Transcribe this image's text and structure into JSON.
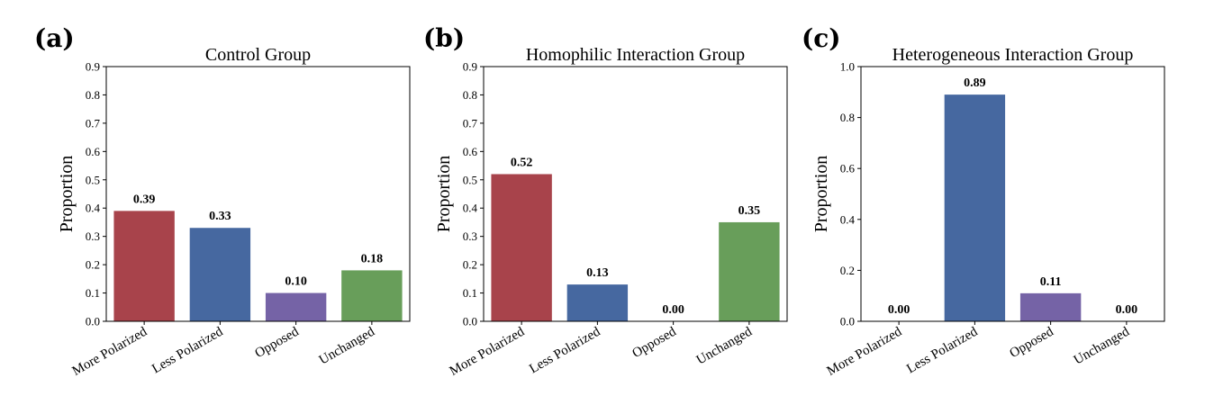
{
  "colors": {
    "more_polarized": "#a8434b",
    "less_polarized": "#4668a0",
    "opposed": "#7563a6",
    "unchanged": "#689e5a"
  },
  "chart_data": [
    {
      "type": "bar",
      "panel_label": "(a)",
      "title": "Control Group",
      "ylabel": "Proportion",
      "categories": [
        "More Polarized",
        "Less Polarized",
        "Opposed",
        "Unchanged"
      ],
      "values": [
        0.39,
        0.33,
        0.1,
        0.18
      ],
      "value_labels": [
        "0.39",
        "0.33",
        "0.10",
        "0.18"
      ],
      "ylim": [
        0,
        0.9
      ],
      "yticks": [
        "0.0",
        "0.1",
        "0.2",
        "0.3",
        "0.4",
        "0.5",
        "0.6",
        "0.7",
        "0.8",
        "0.9"
      ],
      "ytick_values": [
        0,
        0.1,
        0.2,
        0.3,
        0.4,
        0.5,
        0.6,
        0.7,
        0.8,
        0.9
      ],
      "grid": false
    },
    {
      "type": "bar",
      "panel_label": "(b)",
      "title": "Homophilic Interaction Group",
      "ylabel": "Proportion",
      "categories": [
        "More Polarized",
        "Less Polarized",
        "Opposed",
        "Unchanged"
      ],
      "values": [
        0.52,
        0.13,
        0.0,
        0.35
      ],
      "value_labels": [
        "0.52",
        "0.13",
        "0.00",
        "0.35"
      ],
      "ylim": [
        0,
        0.9
      ],
      "yticks": [
        "0.0",
        "0.1",
        "0.2",
        "0.3",
        "0.4",
        "0.5",
        "0.6",
        "0.7",
        "0.8",
        "0.9"
      ],
      "ytick_values": [
        0,
        0.1,
        0.2,
        0.3,
        0.4,
        0.5,
        0.6,
        0.7,
        0.8,
        0.9
      ],
      "grid": false
    },
    {
      "type": "bar",
      "panel_label": "(c)",
      "title": "Heterogeneous Interaction Group",
      "ylabel": "Proportion",
      "categories": [
        "More Polarized",
        "Less Polarized",
        "Opposed",
        "Unchanged"
      ],
      "values": [
        0.0,
        0.89,
        0.11,
        0.0
      ],
      "value_labels": [
        "0.00",
        "0.89",
        "0.11",
        "0.00"
      ],
      "ylim": [
        0,
        1.0
      ],
      "yticks": [
        "0.0",
        "0.2",
        "0.4",
        "0.6",
        "0.8",
        "1.0"
      ],
      "ytick_values": [
        0,
        0.2,
        0.4,
        0.6,
        0.8,
        1.0
      ],
      "grid": false
    }
  ]
}
